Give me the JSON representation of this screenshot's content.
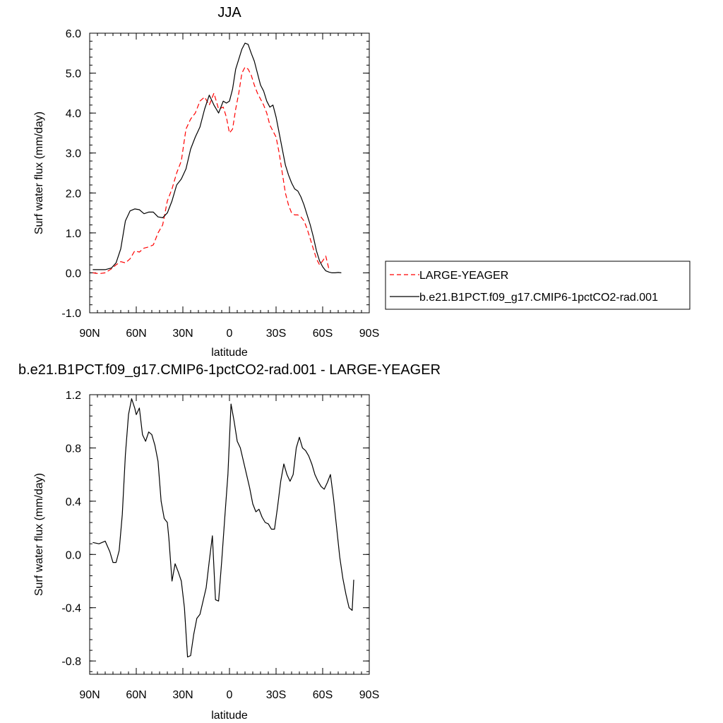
{
  "chart_data": [
    {
      "type": "line",
      "title": "JJA",
      "xlabel": "latitude",
      "ylabel": "Surf water flux (mm/day)",
      "xlim": [
        90,
        -90
      ],
      "ylim": [
        -1.0,
        6.0
      ],
      "x_ticks": [
        90,
        60,
        30,
        0,
        -30,
        -60,
        -90
      ],
      "x_tick_labels": [
        "90N",
        "60N",
        "30N",
        "0",
        "30S",
        "60S",
        "90S"
      ],
      "y_ticks": [
        -1.0,
        0.0,
        1.0,
        2.0,
        3.0,
        4.0,
        5.0,
        6.0
      ],
      "y_tick_labels": [
        "-1.0",
        "0.0",
        "1.0",
        "2.0",
        "3.0",
        "4.0",
        "5.0",
        "6.0"
      ],
      "grid": false,
      "legend_position": "right",
      "series": [
        {
          "name": "LARGE-YEAGER",
          "color": "#ff0000",
          "dash": "dashed",
          "x": [
            88,
            84,
            80,
            76,
            73,
            70,
            67,
            64,
            61,
            58,
            55,
            52,
            49,
            46,
            43,
            40,
            37,
            34,
            31,
            28,
            25,
            22,
            19,
            16,
            13,
            10,
            7,
            4,
            2,
            0,
            -2,
            -4,
            -6,
            -8,
            -10,
            -12,
            -14,
            -16,
            -18,
            -20,
            -22,
            -24,
            -26,
            -28,
            -30,
            -32,
            -34,
            -36,
            -38,
            -40,
            -42,
            -44,
            -46,
            -48,
            -50,
            -52,
            -54,
            -56,
            -58,
            -60,
            -62,
            -64,
            -66,
            -68,
            -70,
            -72,
            -74,
            -76,
            -78,
            -80
          ],
          "y": [
            0.0,
            -0.02,
            0.0,
            0.1,
            0.2,
            0.28,
            0.25,
            0.35,
            0.55,
            0.52,
            0.62,
            0.65,
            0.7,
            1.0,
            1.2,
            1.8,
            2.1,
            2.5,
            2.8,
            3.6,
            3.85,
            4.0,
            4.3,
            4.4,
            4.2,
            4.5,
            4.1,
            4.15,
            3.9,
            3.5,
            3.6,
            4.1,
            4.5,
            5.0,
            5.15,
            5.1,
            4.95,
            4.7,
            4.5,
            4.35,
            4.2,
            4.0,
            3.7,
            3.55,
            3.4,
            3.0,
            2.5,
            2.0,
            1.7,
            1.5,
            1.45,
            1.45,
            1.4,
            1.3,
            1.1,
            0.85,
            0.6,
            0.35,
            0.2,
            0.3,
            0.42,
            0.1,
            null,
            null,
            null,
            null,
            null,
            null,
            null,
            null
          ]
        },
        {
          "name": "b.e21.B1PCT.f09_g17.CMIP6-1pctCO2-rad.001",
          "color": "#000000",
          "dash": "solid",
          "x": [
            88,
            84,
            80,
            76,
            73,
            70,
            67,
            64,
            61,
            58,
            55,
            52,
            49,
            46,
            43,
            40,
            37,
            34,
            31,
            28,
            25,
            22,
            19,
            16,
            13,
            10,
            7,
            4,
            2,
            0,
            -2,
            -4,
            -6,
            -8,
            -10,
            -12,
            -14,
            -16,
            -18,
            -20,
            -22,
            -24,
            -26,
            -28,
            -30,
            -32,
            -34,
            -36,
            -38,
            -40,
            -42,
            -44,
            -46,
            -48,
            -50,
            -52,
            -54,
            -56,
            -58,
            -60,
            -62,
            -64,
            -66,
            -68,
            -70,
            -72,
            -74,
            -76,
            -78,
            -80,
            -83,
            -86,
            -88
          ],
          "y": [
            0.08,
            0.08,
            0.08,
            0.12,
            0.25,
            0.6,
            1.3,
            1.55,
            1.6,
            1.58,
            1.48,
            1.52,
            1.52,
            1.4,
            1.38,
            1.5,
            1.8,
            2.2,
            2.35,
            2.6,
            3.1,
            3.4,
            3.65,
            4.1,
            4.45,
            4.2,
            4.0,
            4.3,
            4.25,
            4.3,
            4.6,
            5.1,
            5.35,
            5.6,
            5.75,
            5.72,
            5.5,
            5.3,
            5.0,
            4.7,
            4.55,
            4.3,
            4.15,
            4.2,
            3.9,
            3.5,
            3.1,
            2.7,
            2.45,
            2.25,
            2.1,
            2.05,
            1.9,
            1.7,
            1.45,
            1.2,
            0.9,
            0.55,
            0.3,
            0.15,
            0.05,
            0.02,
            0.0,
            0.0,
            0.01,
            0.0,
            null,
            null,
            null,
            null,
            null,
            null,
            null
          ]
        }
      ]
    },
    {
      "type": "line",
      "title": "b.e21.B1PCT.f09_g17.CMIP6-1pctCO2-rad.001 - LARGE-YEAGER",
      "xlabel": "latitude",
      "ylabel": "Surf water flux (mm/day)",
      "xlim": [
        90,
        -90
      ],
      "ylim": [
        -0.9,
        1.2
      ],
      "x_ticks": [
        90,
        60,
        30,
        0,
        -30,
        -60,
        -90
      ],
      "x_tick_labels": [
        "90N",
        "60N",
        "30N",
        "0",
        "30S",
        "60S",
        "90S"
      ],
      "y_ticks": [
        -0.8,
        -0.4,
        0.0,
        0.4,
        0.8,
        1.2
      ],
      "y_tick_labels": [
        "-0.8",
        "-0.4",
        "0.0",
        "0.4",
        "0.8",
        "1.2"
      ],
      "grid": false,
      "series": [
        {
          "color": "#000000",
          "dash": "solid",
          "x": [
            88,
            84,
            80,
            77,
            76,
            75,
            73,
            71,
            69,
            67,
            65,
            63,
            61,
            60,
            58,
            56,
            54,
            52,
            50,
            48,
            46,
            44,
            42,
            40,
            39,
            37,
            35,
            33,
            31,
            29,
            27,
            25,
            23,
            21,
            19,
            17,
            15,
            13,
            11,
            9,
            7,
            5,
            3,
            1,
            -1,
            -3,
            -5,
            -7,
            -9,
            -11,
            -13,
            -15,
            -17,
            -19,
            -21,
            -23,
            -25,
            -27,
            -29,
            -31,
            -33,
            -35,
            -37,
            -39,
            -41,
            -43,
            -45,
            -47,
            -49,
            -51,
            -53,
            -55,
            -57,
            -59,
            -61,
            -63,
            -65,
            -67,
            -69,
            -71,
            -73,
            -75,
            -77,
            -79,
            -80
          ],
          "y": [
            0.09,
            0.08,
            0.1,
            0.02,
            -0.02,
            -0.06,
            -0.06,
            0.03,
            0.3,
            0.75,
            1.05,
            1.17,
            1.1,
            1.05,
            1.1,
            0.9,
            0.85,
            0.92,
            0.9,
            0.82,
            0.7,
            0.4,
            0.27,
            0.24,
            0.12,
            -0.2,
            -0.07,
            -0.13,
            -0.2,
            -0.4,
            -0.77,
            -0.76,
            -0.6,
            -0.48,
            -0.45,
            -0.35,
            -0.25,
            -0.05,
            0.14,
            -0.34,
            -0.35,
            -0.05,
            0.28,
            0.6,
            1.13,
            1.0,
            0.85,
            0.8,
            0.7,
            0.6,
            0.5,
            0.38,
            0.32,
            0.34,
            0.28,
            0.24,
            0.23,
            0.19,
            0.19,
            0.36,
            0.55,
            0.68,
            0.6,
            0.55,
            0.6,
            0.8,
            0.88,
            0.8,
            0.78,
            0.74,
            0.68,
            0.6,
            0.55,
            0.51,
            0.49,
            0.54,
            0.6,
            0.42,
            0.2,
            -0.02,
            -0.18,
            -0.3,
            -0.4,
            -0.42,
            -0.19
          ]
        }
      ]
    }
  ]
}
